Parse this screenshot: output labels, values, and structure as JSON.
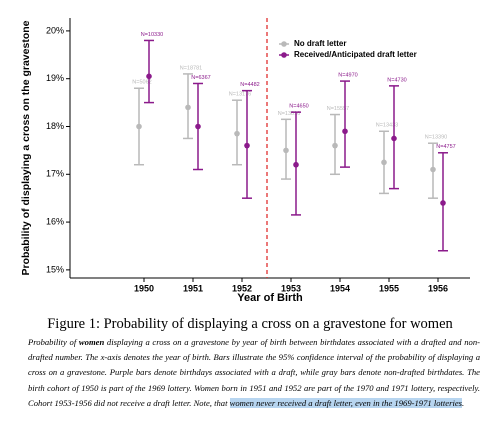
{
  "chart_data": {
    "type": "errorbar",
    "ylabel": "Probability of displaying a cross on the gravestone",
    "xlabel": "Year of Birth",
    "categories": [
      "1950",
      "1951",
      "1952",
      "1953",
      "1954",
      "1955",
      "1956"
    ],
    "ylim": [
      14.83,
      20.27
    ],
    "yticks": [
      {
        "value": 15,
        "label": "15%"
      },
      {
        "value": 16,
        "label": "16%"
      },
      {
        "value": 17,
        "label": "17%"
      },
      {
        "value": 18,
        "label": "18%"
      },
      {
        "value": 19,
        "label": "19%"
      },
      {
        "value": 20,
        "label": "20%"
      }
    ],
    "legend": "upper right",
    "series": [
      {
        "name": "No draft letter",
        "color": "#b9b9b9",
        "values": [
          18.0,
          18.4,
          17.85,
          17.5,
          17.6,
          17.25,
          17.1
        ],
        "lower": [
          17.2,
          17.75,
          17.2,
          16.9,
          17.0,
          16.6,
          16.5
        ],
        "upper": [
          18.8,
          19.1,
          18.55,
          18.15,
          18.25,
          17.9,
          17.65
        ],
        "n_labels": [
          "N=5062",
          "N=18781",
          "N=13176",
          "N=13816",
          "N=15557",
          "N=13433",
          "N=13390"
        ]
      },
      {
        "name": "Received/Anticipated draft letter",
        "color": "#8b1a8b",
        "values": [
          19.05,
          18.0,
          17.6,
          17.2,
          17.9,
          17.75,
          16.4
        ],
        "lower": [
          18.5,
          17.1,
          16.5,
          16.15,
          17.15,
          16.7,
          15.4
        ],
        "upper": [
          19.8,
          18.9,
          18.75,
          18.3,
          18.95,
          18.85,
          17.45
        ],
        "n_labels": [
          "N=10330",
          "N=6367",
          "N=4482",
          "N=4650",
          "N=4970",
          "N=4730",
          "N=4757"
        ]
      }
    ]
  },
  "caption": {
    "title": "Figure 1: Probability of displaying a cross on a gravestone for women",
    "body_start": "Probability of ",
    "body_bold": "women",
    "body_main": " displaying a cross on a gravestone by year of birth between birthdates associated with a drafted and non-drafted number.  The x-axis denotes the year of birth.  Bars illustrate the 95% confidence interval of the probability of displaying a cross on a gravestone. Purple bars denote birthdays associated with a draft, while gray bars denote non-drafted birthdates. The birth cohort of 1950 is part of the 1969 lottery. Women born in 1951 and 1952 are part of the 1970 and 1971 lottery, respectively. Cohort 1953-1956 did not receive a draft letter. Note, that ",
    "body_highlight": "women never received a draft letter, even in the 1969-1971 lotteries",
    "body_end": "."
  }
}
